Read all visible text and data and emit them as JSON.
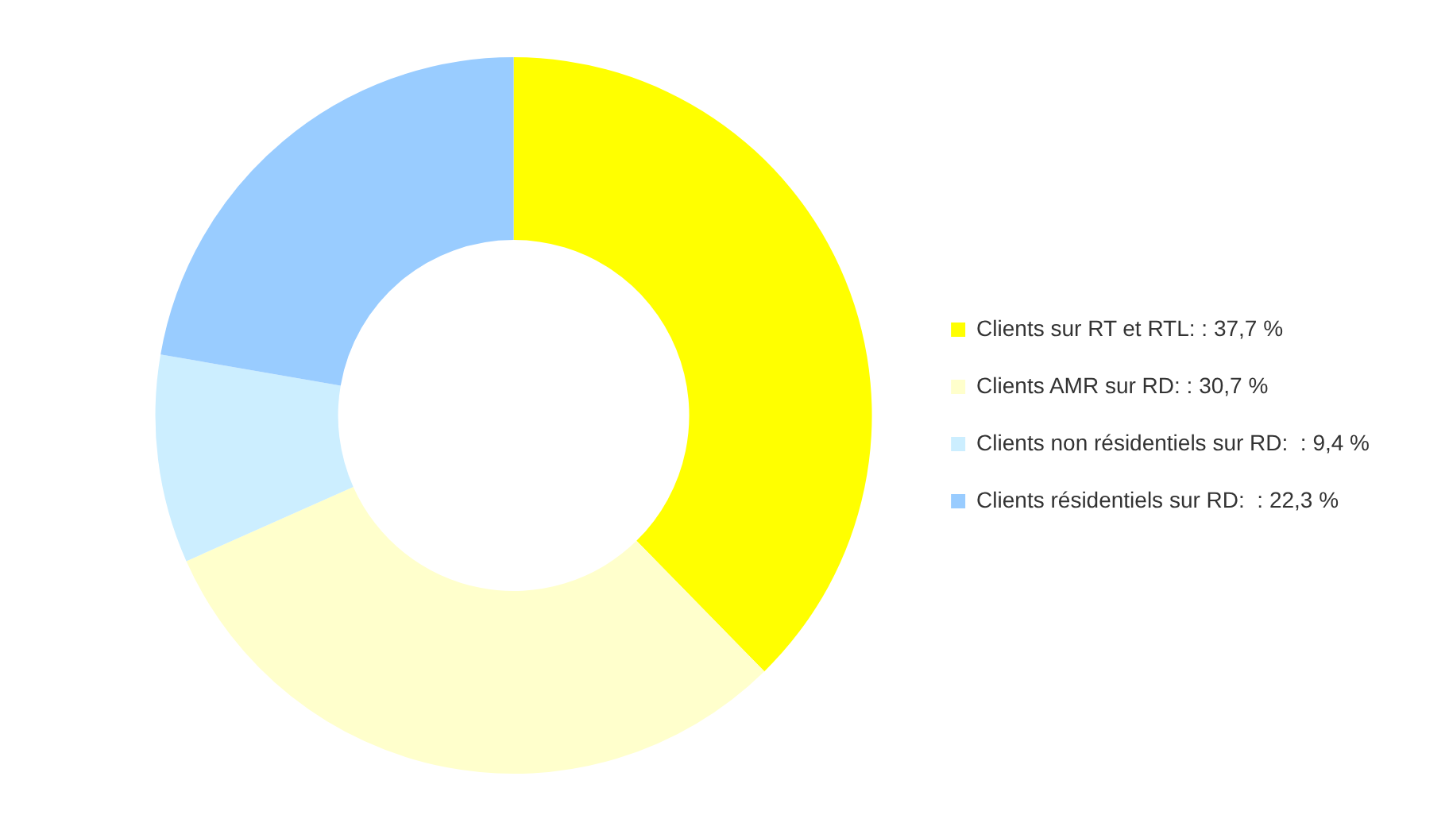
{
  "chart_data": {
    "type": "donut",
    "categories": [
      "Clients sur RT et RTL: : 37,7 %",
      "Clients AMR sur RD: : 30,7 %",
      "Clients non résidentiels sur RD:  : 9,4 %",
      "Clients résidentiels sur RD:  : 22,3 %"
    ],
    "values": [
      37.7,
      30.7,
      9.4,
      22.3
    ],
    "colors": [
      "#ffff00",
      "#ffffcc",
      "#cceeff",
      "#99ccff"
    ],
    "legend": "right"
  }
}
